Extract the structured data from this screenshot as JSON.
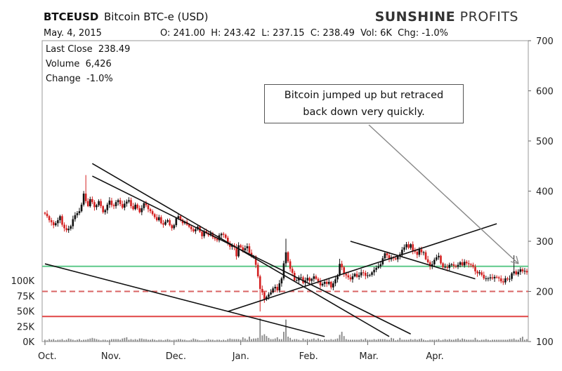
{
  "header": {
    "ticker": "BTCEUSD",
    "description": "Bitcoin BTC-e (USD)",
    "brand_bold": "SUNSHINE",
    "brand_rest": "PROFITS",
    "date": "May. 4, 2015",
    "ohlc": "O: 241.00  H: 243.42  L: 237.15  C: 238.49  Vol: 6K  Chg: -1.0%"
  },
  "info": {
    "last_close": "Last Close  238.49",
    "volume": "Volume  6,426",
    "change": "Change  -1.0%"
  },
  "annotation": {
    "line1": "Bitcoin jumped up but retraced",
    "line2": "back down very quickly."
  },
  "colors": {
    "up": "#111111",
    "down": "#d42020",
    "green_line": "#5ec98a",
    "red_dashed": "#d96464",
    "red_solid": "#e04545",
    "trend": "#111111",
    "volume": "#888888"
  },
  "chart_data": {
    "type": "candlestick",
    "y_price_ticks": [
      "700",
      "600",
      "500",
      "400",
      "300",
      "200",
      "100"
    ],
    "y_price_values": [
      700,
      600,
      500,
      400,
      300,
      200,
      100
    ],
    "y_volume_ticks": [
      "100K",
      "75K",
      "50K",
      "25K",
      "0K"
    ],
    "y_volume_values": [
      100000,
      75000,
      50000,
      25000,
      0
    ],
    "x_ticks": [
      "Oct.",
      "Nov.",
      "Dec.",
      "Jan.",
      "Feb.",
      "Mar.",
      "Apr."
    ],
    "ylim": [
      100,
      700
    ],
    "horizontal_lines": [
      {
        "level": 250,
        "style": "solid-green"
      },
      {
        "level": 200,
        "style": "dashed-red"
      },
      {
        "level": 150,
        "style": "solid-red"
      }
    ],
    "trendlines": [
      {
        "x1": 22,
        "y1": 455,
        "x2": 160,
        "y2": 110
      },
      {
        "x1": 22,
        "y1": 430,
        "x2": 170,
        "y2": 115
      },
      {
        "x1": 0,
        "y1": 255,
        "x2": 130,
        "y2": 110
      },
      {
        "x1": 85,
        "y1": 160,
        "x2": 210,
        "y2": 335
      },
      {
        "x1": 142,
        "y1": 300,
        "x2": 200,
        "y2": 225
      }
    ],
    "closes": [
      355,
      350,
      342,
      338,
      332,
      336,
      342,
      350,
      333,
      326,
      322,
      325,
      330,
      344,
      352,
      356,
      360,
      373,
      395,
      380,
      370,
      384,
      378,
      368,
      372,
      380,
      370,
      358,
      362,
      373,
      381,
      372,
      370,
      378,
      382,
      374,
      367,
      375,
      379,
      382,
      370,
      364,
      373,
      366,
      358,
      366,
      376,
      372,
      364,
      360,
      354,
      348,
      342,
      348,
      336,
      333,
      339,
      342,
      332,
      326,
      332,
      346,
      350,
      343,
      336,
      339,
      333,
      329,
      324,
      320,
      324,
      329,
      319,
      310,
      320,
      316,
      312,
      316,
      308,
      305,
      302,
      312,
      315,
      313,
      307,
      296,
      289,
      292,
      288,
      270,
      292,
      288,
      282,
      286,
      290,
      277,
      270,
      270,
      253,
      230,
      205,
      198,
      184,
      189,
      194,
      198,
      206,
      209,
      202,
      216,
      226,
      256,
      278,
      260,
      245,
      237,
      222,
      222,
      228,
      228,
      217,
      222,
      227,
      221,
      225,
      230,
      225,
      220,
      212,
      215,
      219,
      215,
      219,
      208,
      216,
      224,
      232,
      255,
      248,
      235,
      232,
      228,
      224,
      230,
      235,
      229,
      232,
      238,
      237,
      231,
      232,
      233,
      238,
      243,
      247,
      250,
      254,
      266,
      276,
      272,
      264,
      268,
      266,
      264,
      270,
      274,
      283,
      288,
      294,
      287,
      294,
      281,
      279,
      273,
      284,
      278,
      278,
      264,
      258,
      250,
      254,
      263,
      268,
      271,
      256,
      248,
      249,
      247,
      253,
      254,
      251,
      249,
      253,
      258,
      252,
      259,
      256,
      254,
      253,
      249,
      240,
      236,
      238,
      233,
      226,
      226,
      226,
      228,
      226,
      229,
      228,
      226,
      220,
      218,
      226,
      224,
      225,
      236,
      240,
      234,
      239,
      244,
      240,
      241,
      238
    ],
    "last_close": 238.49,
    "volume_bars": [
      3,
      2,
      4,
      3,
      4,
      2,
      3,
      3,
      4,
      2,
      3,
      5,
      4,
      3,
      2,
      3,
      4,
      2,
      3,
      3,
      4,
      5,
      6,
      5,
      4,
      3,
      2,
      3,
      3,
      2,
      3,
      4,
      4,
      4,
      4,
      3,
      5,
      6,
      7,
      3,
      4,
      3,
      4,
      3,
      5,
      5,
      4,
      4,
      3,
      3,
      4,
      3,
      2,
      3,
      3,
      2,
      3,
      4,
      3,
      2,
      3,
      3,
      4,
      4,
      3,
      3,
      2,
      2,
      3,
      5,
      4,
      3,
      2,
      2,
      2,
      3,
      4,
      3,
      3,
      2,
      3,
      3,
      2,
      3,
      2,
      4,
      5,
      4,
      4,
      4,
      4,
      3,
      7,
      5,
      3,
      8,
      4,
      5,
      5,
      6,
      38,
      10,
      12,
      9,
      6,
      4,
      4,
      5,
      7,
      4,
      4,
      16,
      36,
      8,
      6,
      3,
      4,
      4,
      3,
      2,
      5,
      3,
      4,
      3,
      4,
      5,
      3,
      5,
      3,
      2,
      4,
      3,
      3,
      4,
      3,
      4,
      5,
      11,
      16,
      9,
      4,
      3,
      3,
      3,
      3,
      3,
      3,
      4,
      3,
      5,
      3,
      3,
      3,
      4,
      3,
      4,
      4,
      4,
      4,
      3,
      3,
      6,
      5,
      2,
      3,
      6,
      3,
      3,
      3,
      3,
      4,
      3,
      4,
      3,
      4,
      5,
      3,
      2,
      2,
      3,
      3,
      3,
      3,
      4,
      2,
      3,
      4,
      3,
      4,
      3,
      3,
      4,
      5,
      3,
      5,
      4,
      3,
      3,
      3,
      3,
      6,
      3,
      2,
      3,
      3,
      4,
      3,
      2,
      3,
      3,
      3,
      3,
      3,
      3,
      3,
      3,
      4,
      4,
      5,
      3,
      3,
      6,
      8,
      3,
      4
    ]
  }
}
